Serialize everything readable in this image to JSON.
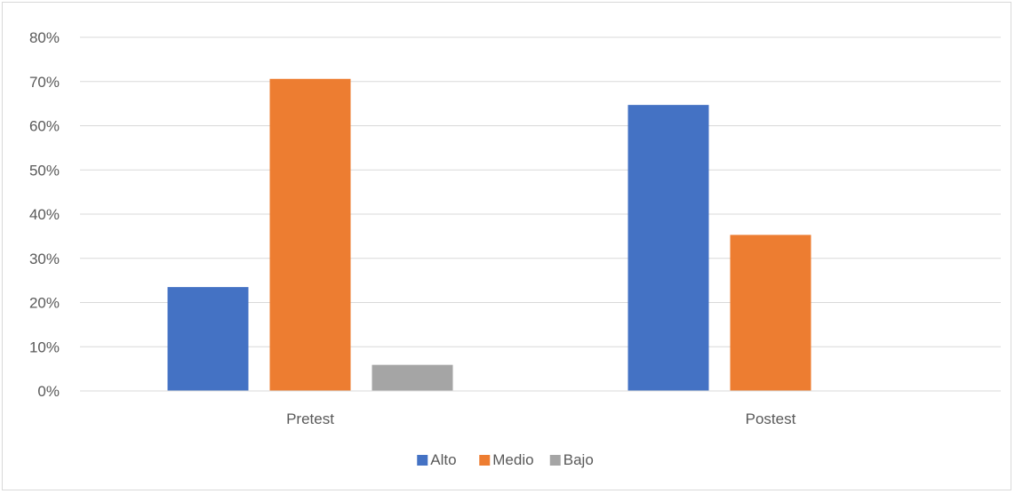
{
  "chart_data": {
    "type": "bar",
    "categories": [
      "Pretest",
      "Postest"
    ],
    "series": [
      {
        "name": "Alto",
        "values": [
          23.5,
          64.7
        ],
        "color": "#4472C4"
      },
      {
        "name": "Medio",
        "values": [
          70.6,
          35.3
        ],
        "color": "#ED7D31"
      },
      {
        "name": "Bajo",
        "values": [
          5.9,
          0
        ],
        "color": "#A5A5A5"
      }
    ],
    "ylim": [
      0,
      80
    ],
    "yticks": [
      0,
      10,
      20,
      30,
      40,
      50,
      60,
      70,
      80
    ],
    "ytick_labels": [
      "0%",
      "10%",
      "20%",
      "30%",
      "40%",
      "50%",
      "60%",
      "70%",
      "80%"
    ],
    "grid": true,
    "legend_position": "bottom",
    "gridline_color": "#d9d9d9",
    "title": "",
    "xlabel": "",
    "ylabel": ""
  }
}
